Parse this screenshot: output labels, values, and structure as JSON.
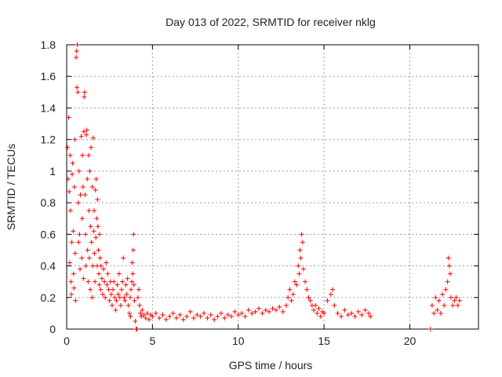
{
  "chart_data": {
    "type": "scatter",
    "title": "Day 013 of 2022, SRMTID for receiver nklg",
    "xlabel": "GPS time / hours",
    "ylabel": "SRMTID / TECUs",
    "xlim": [
      0,
      24
    ],
    "ylim": [
      0,
      1.8
    ],
    "xticks": [
      0,
      5,
      10,
      15,
      20
    ],
    "yticks": [
      0,
      0.2,
      0.4,
      0.6,
      0.8,
      1,
      1.2,
      1.4,
      1.6,
      1.8
    ],
    "xtick_labels": [
      "0",
      "5",
      "10",
      "15",
      "20"
    ],
    "ytick_labels": [
      "0",
      "0.2",
      "0.4",
      "0.6",
      "0.8",
      "1",
      "1.2",
      "1.4",
      "1.6",
      "1.8"
    ],
    "grid": true,
    "marker": "+",
    "colors": {
      "series": "#ff0000",
      "grid": "#a0a0a0",
      "axis": "#000000"
    },
    "series": [
      {
        "name": "SRMTID",
        "points": [
          [
            0.05,
            1.15
          ],
          [
            0.08,
            0.95
          ],
          [
            0.12,
            1.34
          ],
          [
            0.15,
            0.87
          ],
          [
            0.18,
            0.42
          ],
          [
            0.2,
            1.1
          ],
          [
            0.22,
            0.75
          ],
          [
            0.25,
            0.3
          ],
          [
            0.28,
            0.22
          ],
          [
            0.3,
            0.55
          ],
          [
            0.32,
            0.98
          ],
          [
            0.35,
            1.05
          ],
          [
            0.38,
            0.62
          ],
          [
            0.4,
            0.35
          ],
          [
            0.42,
            0.26
          ],
          [
            0.45,
            0.9
          ],
          [
            0.48,
            1.2
          ],
          [
            0.5,
            0.48
          ],
          [
            0.52,
            0.18
          ],
          [
            0.55,
            1.72
          ],
          [
            0.58,
            1.76
          ],
          [
            0.6,
            1.53
          ],
          [
            0.62,
            1.8
          ],
          [
            0.65,
            1.5
          ],
          [
            0.68,
            0.8
          ],
          [
            0.7,
            0.55
          ],
          [
            0.72,
            1.0
          ],
          [
            0.75,
            0.6
          ],
          [
            0.78,
            0.38
          ],
          [
            0.8,
            0.85
          ],
          [
            0.85,
            1.22
          ],
          [
            0.88,
            0.45
          ],
          [
            0.9,
            0.7
          ],
          [
            0.92,
            1.1
          ],
          [
            0.95,
            0.9
          ],
          [
            0.98,
            0.32
          ],
          [
            1.0,
            1.25
          ],
          [
            1.02,
            1.47
          ],
          [
            1.05,
            1.5
          ],
          [
            1.08,
            0.85
          ],
          [
            1.1,
            0.6
          ],
          [
            1.12,
            0.4
          ],
          [
            1.15,
            1.23
          ],
          [
            1.18,
            1.26
          ],
          [
            1.2,
            0.95
          ],
          [
            1.22,
            0.5
          ],
          [
            1.25,
            0.3
          ],
          [
            1.28,
            1.1
          ],
          [
            1.3,
            0.75
          ],
          [
            1.32,
            0.45
          ],
          [
            1.35,
            1.0
          ],
          [
            1.38,
            0.25
          ],
          [
            1.4,
            0.65
          ],
          [
            1.42,
            1.15
          ],
          [
            1.45,
            0.55
          ],
          [
            1.48,
            0.2
          ],
          [
            1.5,
            0.9
          ],
          [
            1.52,
            0.4
          ],
          [
            1.55,
            1.21
          ],
          [
            1.58,
            0.62
          ],
          [
            1.6,
            0.75
          ],
          [
            1.62,
            0.48
          ],
          [
            1.65,
            0.3
          ],
          [
            1.68,
            0.88
          ],
          [
            1.7,
            0.58
          ],
          [
            1.72,
            0.95
          ],
          [
            1.75,
            0.7
          ],
          [
            1.78,
            0.4
          ],
          [
            1.8,
            0.82
          ],
          [
            1.82,
            0.65
          ],
          [
            1.85,
            0.5
          ],
          [
            1.88,
            0.35
          ],
          [
            1.9,
            0.28
          ],
          [
            1.92,
            0.6
          ],
          [
            1.95,
            0.45
          ],
          [
            1.98,
            0.25
          ],
          [
            2.0,
            0.4
          ],
          [
            2.05,
            0.32
          ],
          [
            2.1,
            0.22
          ],
          [
            2.15,
            0.38
          ],
          [
            2.2,
            0.3
          ],
          [
            2.25,
            0.2
          ],
          [
            2.3,
            0.42
          ],
          [
            2.35,
            0.28
          ],
          [
            2.4,
            0.35
          ],
          [
            2.45,
            0.25
          ],
          [
            2.5,
            0.18
          ],
          [
            2.55,
            0.3
          ],
          [
            2.6,
            0.22
          ],
          [
            2.65,
            0.15
          ],
          [
            2.7,
            0.25
          ],
          [
            2.75,
            0.3
          ],
          [
            2.8,
            0.2
          ],
          [
            2.85,
            0.12
          ],
          [
            2.9,
            0.18
          ],
          [
            2.95,
            0.28
          ],
          [
            3.0,
            0.22
          ],
          [
            3.05,
            0.35
          ],
          [
            3.1,
            0.2
          ],
          [
            3.15,
            0.15
          ],
          [
            3.2,
            0.25
          ],
          [
            3.25,
            0.3
          ],
          [
            3.3,
            0.45
          ],
          [
            3.35,
            0.2
          ],
          [
            3.4,
            0.18
          ],
          [
            3.45,
            0.28
          ],
          [
            3.5,
            0.22
          ],
          [
            3.55,
            0.32
          ],
          [
            3.6,
            0.15
          ],
          [
            3.65,
            0.1
          ],
          [
            3.7,
            0.2
          ],
          [
            3.72,
            0.08
          ],
          [
            3.75,
            0.25
          ],
          [
            3.8,
            0.3
          ],
          [
            3.82,
            0.42
          ],
          [
            3.85,
            0.35
          ],
          [
            3.88,
            0.5
          ],
          [
            3.9,
            0.6
          ],
          [
            3.92,
            0.28
          ],
          [
            3.95,
            0.18
          ],
          [
            4.0,
            0.05
          ],
          [
            4.05,
            0.0
          ],
          [
            4.1,
            0.0
          ],
          [
            4.15,
            0.2
          ],
          [
            4.2,
            0.25
          ],
          [
            4.25,
            0.15
          ],
          [
            4.3,
            0.1
          ],
          [
            4.35,
            0.08
          ],
          [
            4.4,
            0.12
          ],
          [
            4.5,
            0.09
          ],
          [
            4.6,
            0.07
          ],
          [
            4.7,
            0.1
          ],
          [
            4.8,
            0.06
          ],
          [
            4.9,
            0.09
          ],
          [
            5.0,
            0.08
          ],
          [
            5.2,
            0.1
          ],
          [
            5.4,
            0.07
          ],
          [
            5.6,
            0.09
          ],
          [
            5.8,
            0.06
          ],
          [
            6.0,
            0.08
          ],
          [
            6.2,
            0.1
          ],
          [
            6.4,
            0.07
          ],
          [
            6.6,
            0.09
          ],
          [
            6.8,
            0.06
          ],
          [
            7.0,
            0.08
          ],
          [
            7.2,
            0.11
          ],
          [
            7.4,
            0.07
          ],
          [
            7.6,
            0.09
          ],
          [
            7.8,
            0.08
          ],
          [
            8.0,
            0.1
          ],
          [
            8.2,
            0.07
          ],
          [
            8.4,
            0.09
          ],
          [
            8.6,
            0.06
          ],
          [
            8.8,
            0.08
          ],
          [
            9.0,
            0.1
          ],
          [
            9.2,
            0.07
          ],
          [
            9.4,
            0.09
          ],
          [
            9.6,
            0.08
          ],
          [
            9.8,
            0.11
          ],
          [
            10.0,
            0.09
          ],
          [
            10.2,
            0.1
          ],
          [
            10.4,
            0.08
          ],
          [
            10.6,
            0.12
          ],
          [
            10.8,
            0.1
          ],
          [
            11.0,
            0.11
          ],
          [
            11.2,
            0.13
          ],
          [
            11.4,
            0.1
          ],
          [
            11.6,
            0.12
          ],
          [
            11.8,
            0.11
          ],
          [
            12.0,
            0.13
          ],
          [
            12.2,
            0.12
          ],
          [
            12.4,
            0.14
          ],
          [
            12.6,
            0.11
          ],
          [
            12.8,
            0.15
          ],
          [
            12.9,
            0.2
          ],
          [
            13.0,
            0.25
          ],
          [
            13.1,
            0.18
          ],
          [
            13.2,
            0.22
          ],
          [
            13.3,
            0.3
          ],
          [
            13.4,
            0.28
          ],
          [
            13.5,
            0.4
          ],
          [
            13.55,
            0.35
          ],
          [
            13.6,
            0.5
          ],
          [
            13.65,
            0.45
          ],
          [
            13.7,
            0.6
          ],
          [
            13.75,
            0.55
          ],
          [
            13.8,
            0.38
          ],
          [
            13.9,
            0.3
          ],
          [
            14.0,
            0.25
          ],
          [
            14.1,
            0.2
          ],
          [
            14.2,
            0.18
          ],
          [
            14.3,
            0.15
          ],
          [
            14.4,
            0.12
          ],
          [
            14.5,
            0.15
          ],
          [
            14.6,
            0.1
          ],
          [
            14.7,
            0.13
          ],
          [
            14.8,
            0.08
          ],
          [
            14.9,
            0.11
          ],
          [
            15.0,
            0.1
          ],
          [
            15.2,
            0.18
          ],
          [
            15.4,
            0.22
          ],
          [
            15.5,
            0.25
          ],
          [
            15.6,
            0.15
          ],
          [
            15.8,
            0.1
          ],
          [
            16.0,
            0.08
          ],
          [
            16.2,
            0.12
          ],
          [
            16.4,
            0.09
          ],
          [
            16.6,
            0.1
          ],
          [
            16.8,
            0.08
          ],
          [
            17.0,
            0.11
          ],
          [
            17.2,
            0.09
          ],
          [
            17.4,
            0.12
          ],
          [
            17.6,
            0.1
          ],
          [
            17.7,
            0.08
          ],
          [
            21.2,
            0.0
          ],
          [
            21.3,
            0.15
          ],
          [
            21.4,
            0.1
          ],
          [
            21.5,
            0.2
          ],
          [
            21.6,
            0.12
          ],
          [
            21.7,
            0.18
          ],
          [
            21.8,
            0.1
          ],
          [
            21.9,
            0.22
          ],
          [
            22.0,
            0.15
          ],
          [
            22.1,
            0.25
          ],
          [
            22.2,
            0.3
          ],
          [
            22.25,
            0.45
          ],
          [
            22.3,
            0.4
          ],
          [
            22.35,
            0.35
          ],
          [
            22.4,
            0.2
          ],
          [
            22.5,
            0.15
          ],
          [
            22.6,
            0.18
          ],
          [
            22.7,
            0.2
          ],
          [
            22.8,
            0.15
          ],
          [
            22.9,
            0.18
          ]
        ]
      }
    ]
  }
}
